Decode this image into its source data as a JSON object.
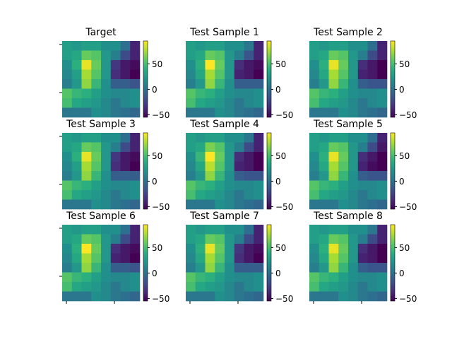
{
  "figure": {
    "background": "#ffffff"
  },
  "chart_data": {
    "type": "heatmap",
    "colormap": "viridis",
    "shared": {
      "colorbar_ticks": [
        50,
        0,
        -50
      ],
      "value_range": [
        -55,
        95
      ],
      "grid": false
    },
    "panels": [
      {
        "title": "Target",
        "grid": [
          [
            30,
            25,
            30,
            30,
            20,
            20,
            0,
            -40
          ],
          [
            30,
            35,
            60,
            55,
            25,
            10,
            -20,
            -40
          ],
          [
            20,
            40,
            90,
            60,
            25,
            -30,
            -45,
            -50
          ],
          [
            15,
            30,
            75,
            55,
            25,
            -35,
            -45,
            -55
          ],
          [
            10,
            25,
            70,
            45,
            20,
            -10,
            -10,
            -15
          ],
          [
            55,
            45,
            40,
            30,
            20,
            15,
            15,
            20
          ],
          [
            50,
            35,
            30,
            25,
            15,
            5,
            15,
            20
          ],
          [
            5,
            5,
            5,
            20,
            15,
            5,
            0,
            -5
          ]
        ]
      },
      {
        "title": "Test Sample 1",
        "grid": [
          [
            30,
            25,
            30,
            30,
            20,
            20,
            5,
            -40
          ],
          [
            30,
            35,
            60,
            55,
            25,
            10,
            -15,
            -40
          ],
          [
            20,
            40,
            95,
            60,
            25,
            -35,
            -45,
            -50
          ],
          [
            15,
            35,
            75,
            55,
            25,
            -40,
            -45,
            -55
          ],
          [
            10,
            25,
            70,
            45,
            20,
            -10,
            -10,
            -10
          ],
          [
            55,
            45,
            40,
            30,
            20,
            15,
            15,
            20
          ],
          [
            50,
            35,
            30,
            25,
            15,
            5,
            15,
            20
          ],
          [
            5,
            5,
            5,
            20,
            15,
            5,
            0,
            -5
          ]
        ]
      },
      {
        "title": "Test Sample 2",
        "grid": [
          [
            30,
            25,
            30,
            30,
            20,
            20,
            0,
            -40
          ],
          [
            30,
            35,
            60,
            55,
            25,
            10,
            -20,
            -40
          ],
          [
            20,
            40,
            90,
            60,
            25,
            -35,
            -45,
            -55
          ],
          [
            15,
            35,
            75,
            55,
            25,
            -40,
            -45,
            -55
          ],
          [
            10,
            25,
            70,
            45,
            20,
            -10,
            -15,
            -15
          ],
          [
            55,
            45,
            40,
            30,
            20,
            15,
            15,
            20
          ],
          [
            50,
            35,
            30,
            25,
            15,
            5,
            15,
            20
          ],
          [
            5,
            5,
            5,
            20,
            15,
            5,
            0,
            -5
          ]
        ]
      },
      {
        "title": "Test Sample 3",
        "grid": [
          [
            30,
            25,
            30,
            30,
            20,
            20,
            0,
            -40
          ],
          [
            30,
            35,
            60,
            55,
            25,
            10,
            -20,
            -40
          ],
          [
            20,
            40,
            90,
            60,
            25,
            -30,
            -45,
            -50
          ],
          [
            15,
            30,
            75,
            55,
            25,
            -35,
            -45,
            -55
          ],
          [
            10,
            25,
            70,
            45,
            20,
            -10,
            -10,
            -10
          ],
          [
            55,
            45,
            40,
            30,
            20,
            15,
            15,
            20
          ],
          [
            50,
            35,
            30,
            25,
            15,
            5,
            15,
            20
          ],
          [
            5,
            5,
            5,
            20,
            15,
            5,
            0,
            -5
          ]
        ]
      },
      {
        "title": "Test Sample 4",
        "grid": [
          [
            30,
            25,
            30,
            30,
            20,
            20,
            5,
            -40
          ],
          [
            30,
            35,
            65,
            55,
            25,
            10,
            -20,
            -40
          ],
          [
            20,
            45,
            95,
            60,
            25,
            -35,
            -45,
            -55
          ],
          [
            15,
            35,
            80,
            55,
            25,
            -40,
            -45,
            -55
          ],
          [
            10,
            25,
            70,
            45,
            20,
            -10,
            -15,
            -15
          ],
          [
            55,
            45,
            40,
            30,
            20,
            15,
            15,
            20
          ],
          [
            50,
            35,
            30,
            25,
            15,
            5,
            15,
            20
          ],
          [
            5,
            5,
            5,
            20,
            15,
            5,
            0,
            -5
          ]
        ]
      },
      {
        "title": "Test Sample 5",
        "grid": [
          [
            30,
            25,
            30,
            30,
            20,
            20,
            0,
            -40
          ],
          [
            30,
            35,
            60,
            55,
            25,
            10,
            -20,
            -45
          ],
          [
            20,
            40,
            90,
            60,
            25,
            -35,
            -45,
            -55
          ],
          [
            15,
            35,
            75,
            55,
            25,
            -40,
            -50,
            -55
          ],
          [
            10,
            25,
            70,
            45,
            20,
            -10,
            -15,
            -15
          ],
          [
            55,
            45,
            40,
            30,
            20,
            15,
            15,
            20
          ],
          [
            50,
            35,
            30,
            25,
            15,
            5,
            15,
            20
          ],
          [
            5,
            5,
            5,
            20,
            15,
            5,
            0,
            -5
          ]
        ]
      },
      {
        "title": "Test Sample 6",
        "grid": [
          [
            30,
            25,
            30,
            30,
            20,
            20,
            0,
            -40
          ],
          [
            30,
            35,
            60,
            55,
            25,
            10,
            -20,
            -40
          ],
          [
            20,
            40,
            95,
            60,
            25,
            -35,
            -45,
            -50
          ],
          [
            15,
            35,
            75,
            55,
            25,
            -40,
            -45,
            -55
          ],
          [
            10,
            25,
            70,
            45,
            20,
            -10,
            -10,
            -15
          ],
          [
            55,
            45,
            40,
            30,
            20,
            15,
            15,
            20
          ],
          [
            50,
            35,
            30,
            25,
            15,
            5,
            15,
            20
          ],
          [
            5,
            5,
            5,
            20,
            15,
            5,
            0,
            -5
          ]
        ]
      },
      {
        "title": "Test Sample 7",
        "grid": [
          [
            30,
            25,
            30,
            30,
            20,
            20,
            0,
            -40
          ],
          [
            30,
            35,
            60,
            55,
            25,
            10,
            -20,
            -40
          ],
          [
            20,
            40,
            90,
            60,
            25,
            -30,
            -45,
            -50
          ],
          [
            15,
            35,
            75,
            55,
            25,
            -35,
            -45,
            -55
          ],
          [
            10,
            25,
            70,
            45,
            20,
            -10,
            -10,
            -10
          ],
          [
            55,
            45,
            40,
            30,
            20,
            15,
            15,
            20
          ],
          [
            50,
            35,
            30,
            25,
            15,
            5,
            15,
            20
          ],
          [
            5,
            5,
            5,
            20,
            15,
            5,
            0,
            -5
          ]
        ]
      },
      {
        "title": "Test Sample 8",
        "grid": [
          [
            30,
            25,
            30,
            30,
            20,
            20,
            5,
            -40
          ],
          [
            30,
            35,
            60,
            55,
            25,
            10,
            -20,
            -40
          ],
          [
            20,
            40,
            90,
            60,
            25,
            -35,
            -45,
            -55
          ],
          [
            15,
            35,
            75,
            55,
            25,
            -40,
            -45,
            -55
          ],
          [
            10,
            25,
            70,
            45,
            20,
            -10,
            -15,
            -15
          ],
          [
            55,
            45,
            40,
            30,
            20,
            15,
            15,
            20
          ],
          [
            50,
            35,
            30,
            25,
            15,
            5,
            15,
            20
          ],
          [
            5,
            5,
            5,
            20,
            15,
            5,
            0,
            -5
          ]
        ]
      }
    ]
  }
}
